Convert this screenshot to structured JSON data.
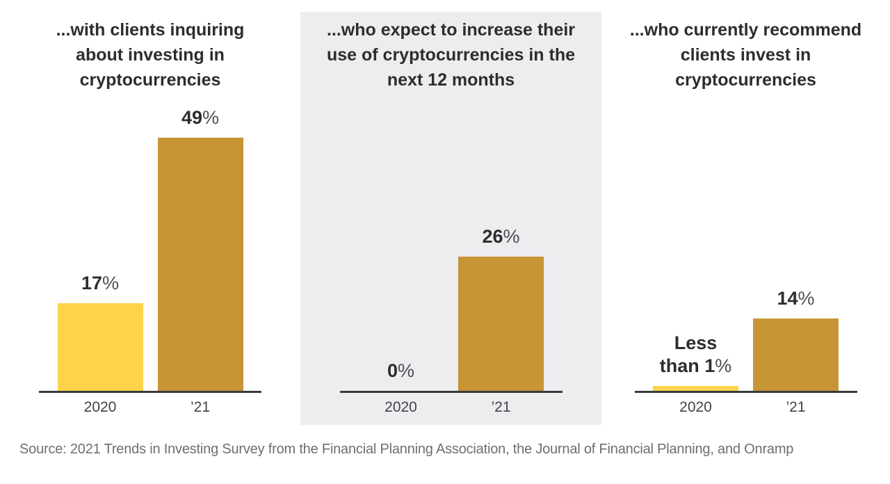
{
  "colors": {
    "series_2020": "#FDD34A",
    "series_2021": "#C79536",
    "axis": "#3A3A3A",
    "panel_highlight_bg": "#ECEDEF",
    "heading_text": "#2D2D2D",
    "suffix_text": "#4E4E55",
    "tick_text": "#41414A",
    "source_text": "#6E6E6E"
  },
  "chart_data": [
    {
      "type": "bar",
      "title": "...with clients inquiring about investing in cryptocurrencies",
      "title_lines": [
        "...with clients inquiring",
        "about investing in",
        "cryptocurrencies"
      ],
      "categories": [
        "2020",
        "’21"
      ],
      "values": [
        17,
        49
      ],
      "bars": [
        {
          "category": "2020",
          "value": 17,
          "label_num": "17",
          "label_suffix": "%"
        },
        {
          "category": "’21",
          "value": 49,
          "label_num": "49",
          "label_suffix": "%"
        }
      ],
      "xlabel": "",
      "ylabel": "",
      "ylim": [
        0,
        49
      ],
      "grid": false,
      "legend": false,
      "highlighted": false
    },
    {
      "type": "bar",
      "title": "...who expect to increase their use of cryptocurrencies in the next 12 months",
      "title_lines": [
        "...who expect to increase their",
        "use of cryptocurrencies in the",
        "next 12 months"
      ],
      "categories": [
        "2020",
        "’21"
      ],
      "values": [
        0,
        26
      ],
      "bars": [
        {
          "category": "2020",
          "value": 0,
          "label_num": "0",
          "label_suffix": "%"
        },
        {
          "category": "’21",
          "value": 26,
          "label_num": "26",
          "label_suffix": "%"
        }
      ],
      "xlabel": "",
      "ylabel": "",
      "ylim": [
        0,
        49
      ],
      "grid": false,
      "legend": false,
      "highlighted": true
    },
    {
      "type": "bar",
      "title": "...who currently recommend clients invest in cryptocurrencies",
      "title_lines": [
        "...who currently recommend",
        "clients invest in",
        "cryptocurrencies"
      ],
      "categories": [
        "2020",
        "’21"
      ],
      "values": [
        0.9,
        14
      ],
      "bars": [
        {
          "category": "2020",
          "value": 0.9,
          "label_num": "Less than 1",
          "label_suffix": "%"
        },
        {
          "category": "’21",
          "value": 14,
          "label_num": "14",
          "label_suffix": "%"
        }
      ],
      "xlabel": "",
      "ylabel": "",
      "ylim": [
        0,
        49
      ],
      "grid": false,
      "legend": false,
      "highlighted": false
    }
  ],
  "source": "Source: 2021 Trends in Investing Survey from the Financial Planning Association, the Journal of Financial Planning, and Onramp"
}
